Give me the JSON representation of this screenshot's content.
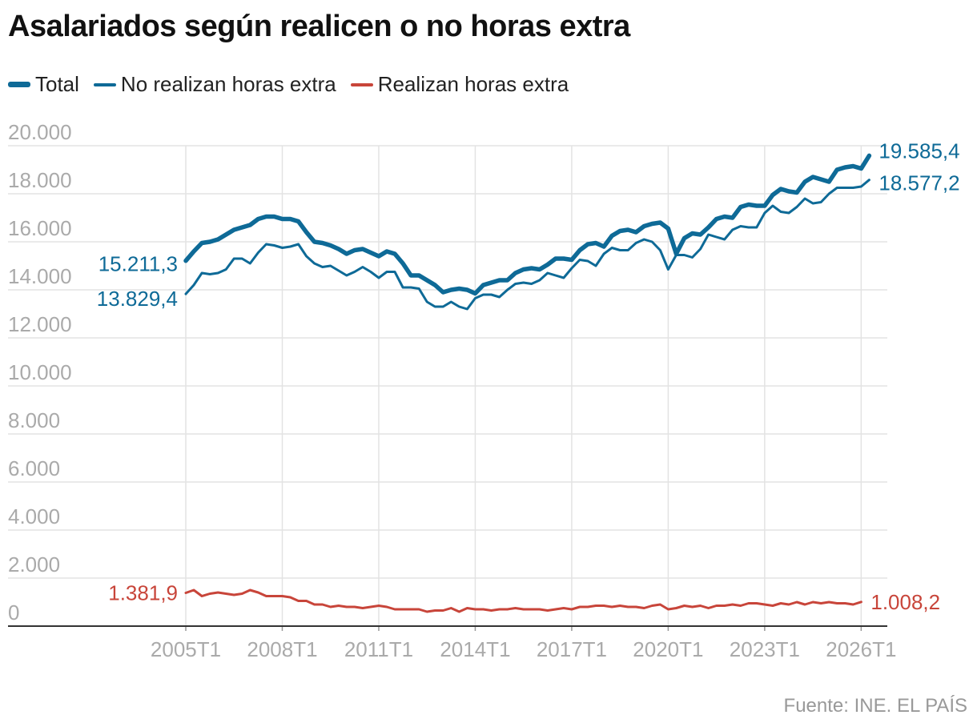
{
  "title": "Asalariados según realicen o no horas extra",
  "source": "Fuente: INE. EL PAÍS",
  "colors": {
    "total": "#0e6a97",
    "no_extra": "#0e6a97",
    "extra": "#c8453a",
    "grid": "#e3e3e3",
    "tick": "#aaaaaa"
  },
  "legend": [
    {
      "key": "total",
      "label": "Total"
    },
    {
      "key": "no_extra",
      "label": "No realizan horas extra"
    },
    {
      "key": "extra",
      "label": "Realizan horas extra"
    }
  ],
  "chart_data": {
    "type": "line",
    "x_start": "2005T1",
    "x_tick_labels": [
      "2005T1",
      "2008T1",
      "2011T1",
      "2014T1",
      "2017T1",
      "2020T1",
      "2023T1",
      "2026T1"
    ],
    "x_tick_index": [
      0,
      12,
      24,
      36,
      48,
      60,
      72,
      84
    ],
    "y_ticks": [
      0,
      2000,
      4000,
      6000,
      8000,
      10000,
      12000,
      14000,
      16000,
      18000,
      20000
    ],
    "y_tick_labels": [
      "0",
      "2.000",
      "4.000",
      "6.000",
      "8.000",
      "10.000",
      "12.000",
      "14.000",
      "16.000",
      "18.000",
      "20.000"
    ],
    "ylim": [
      0,
      20000
    ],
    "grid": true,
    "series": [
      {
        "key": "total",
        "name": "Total",
        "start_label": "15.211,3",
        "end_label": "19.585,4",
        "values": [
          15211.3,
          15600,
          15950,
          16000,
          16100,
          16300,
          16500,
          16600,
          16700,
          16950,
          17050,
          17050,
          16950,
          16950,
          16850,
          16400,
          16000,
          15950,
          15850,
          15700,
          15500,
          15650,
          15700,
          15550,
          15400,
          15600,
          15500,
          15100,
          14600,
          14600,
          14400,
          14200,
          13900,
          14000,
          14050,
          14000,
          13850,
          14200,
          14300,
          14400,
          14400,
          14700,
          14850,
          14900,
          14850,
          15050,
          15300,
          15300,
          15250,
          15650,
          15900,
          15950,
          15800,
          16250,
          16450,
          16500,
          16400,
          16650,
          16750,
          16800,
          16550,
          15500,
          16150,
          16350,
          16300,
          16600,
          16950,
          17050,
          17000,
          17450,
          17550,
          17500,
          17500,
          17950,
          18200,
          18100,
          18050,
          18500,
          18700,
          18600,
          18500,
          19000,
          19100,
          19150,
          19050,
          19585.4
        ]
      },
      {
        "key": "no_extra",
        "name": "No realizan horas extra",
        "start_label": "13.829,4",
        "end_label": "18.577,2",
        "values": [
          13829.4,
          14200,
          14700,
          14650,
          14700,
          14850,
          15300,
          15300,
          15100,
          15550,
          15900,
          15850,
          15750,
          15800,
          15900,
          15400,
          15100,
          14950,
          15000,
          14800,
          14600,
          14750,
          14950,
          14750,
          14500,
          14750,
          14750,
          14100,
          14100,
          14050,
          13500,
          13300,
          13300,
          13500,
          13300,
          13200,
          13650,
          13800,
          13800,
          13700,
          14000,
          14250,
          14300,
          14250,
          14400,
          14700,
          14600,
          14500,
          14900,
          15250,
          15200,
          15000,
          15500,
          15750,
          15650,
          15650,
          15950,
          16100,
          16000,
          15650,
          14850,
          15450,
          15450,
          15350,
          15700,
          16300,
          16200,
          16100,
          16500,
          16650,
          16600,
          16600,
          17200,
          17500,
          17250,
          17200,
          17450,
          17800,
          17600,
          17650,
          18000,
          18250,
          18250,
          18250,
          18300,
          18577.2
        ]
      },
      {
        "key": "extra",
        "name": "Realizan horas extra",
        "start_label": "1.381,9",
        "end_label": "1.008,2",
        "values": [
          1381.9,
          1500,
          1250,
          1350,
          1400,
          1350,
          1300,
          1350,
          1500,
          1400,
          1250,
          1250,
          1250,
          1200,
          1050,
          1050,
          900,
          900,
          800,
          850,
          800,
          800,
          750,
          800,
          850,
          800,
          700,
          700,
          700,
          700,
          600,
          650,
          650,
          750,
          600,
          750,
          700,
          700,
          650,
          700,
          700,
          750,
          700,
          700,
          700,
          650,
          700,
          750,
          700,
          800,
          800,
          850,
          850,
          800,
          850,
          800,
          800,
          750,
          850,
          900,
          700,
          750,
          850,
          800,
          850,
          750,
          850,
          850,
          900,
          850,
          950,
          950,
          900,
          850,
          950,
          900,
          1000,
          900,
          1000,
          950,
          1000,
          950,
          950,
          900,
          1008.2
        ]
      }
    ]
  }
}
